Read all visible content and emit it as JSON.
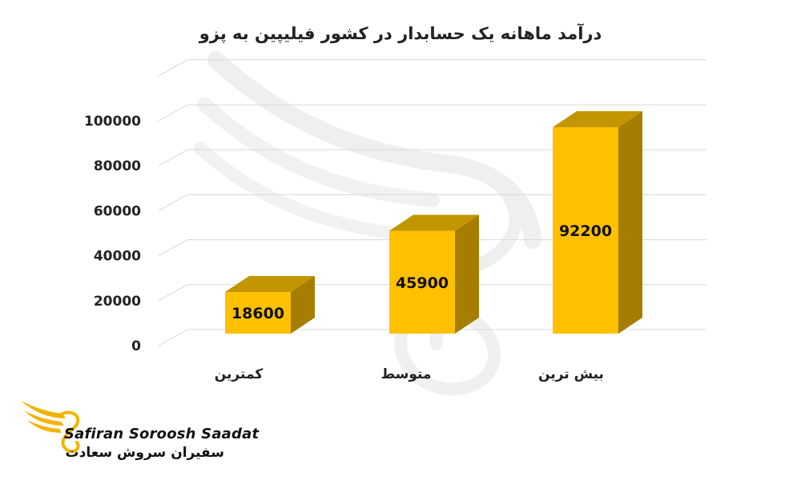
{
  "chart_data": {
    "type": "bar",
    "title": "درآمد ماهانه یک حسابدار در کشور فیلیپین به پزو",
    "categories": [
      "کمترین",
      "متوسط",
      "بیش ترین"
    ],
    "values": [
      18600,
      45900,
      92200
    ],
    "data_labels": [
      "18600",
      "45900",
      "92200"
    ],
    "yticks": [
      "0",
      "20000",
      "40000",
      "60000",
      "80000",
      "100000"
    ],
    "ylim": [
      0,
      100000
    ],
    "three_d": true,
    "grid": true,
    "bar_color": "#ffc000",
    "bar_side_color": "#a57d00",
    "bar_top_color": "#c39500"
  },
  "brand": {
    "name_en": "Safiran Soroosh Saadat",
    "name_fa": "سفیران سروش سعادت",
    "accent_color": "#f2b400"
  }
}
